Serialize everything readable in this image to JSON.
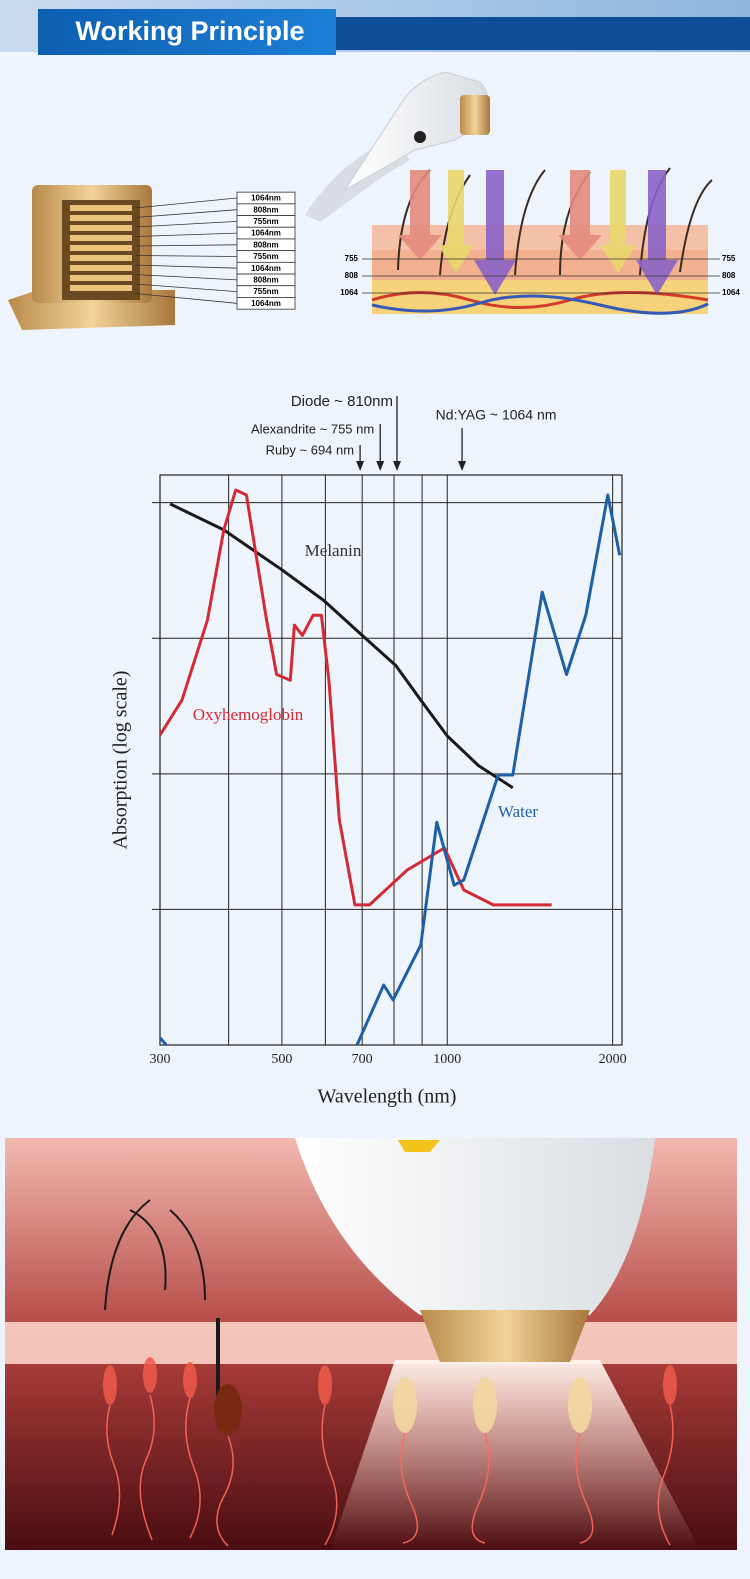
{
  "header": {
    "title": "Working Principle"
  },
  "diode_stack": {
    "labels": [
      "1064nm",
      "808nm",
      "755nm",
      "1064nm",
      "808nm",
      "755nm",
      "1064nm",
      "808nm",
      "755nm",
      "1064nm"
    ]
  },
  "skin_diagram": {
    "labels": [
      "755",
      "808",
      "1064"
    ]
  },
  "chart_data": {
    "type": "line",
    "xlabel": "Wavelength (nm)",
    "ylabel": "Absorption (log scale)",
    "xscale": "log",
    "yscale": "log",
    "xlim": [
      300,
      2080
    ],
    "xticks": [
      300,
      500,
      700,
      1000,
      2000
    ],
    "xgrid_minor": [
      400,
      600,
      800,
      900
    ],
    "ylim": [
      0.01,
      160
    ],
    "ygrid": [
      0.1,
      1,
      10,
      100
    ],
    "grid": true,
    "annotations": [
      {
        "text": "Ruby ~ 694 nm",
        "x": 694
      },
      {
        "text": "Alexandrite ~ 755 nm",
        "x": 755
      },
      {
        "text": "Diode ~ 810nm",
        "x": 810
      },
      {
        "text": "Nd:YAG ~ 1064 nm",
        "x": 1064
      }
    ],
    "series": [
      {
        "name": "Melanin",
        "color": "#1a1a1a",
        "x": [
          313,
          392,
          500,
          596,
          700,
          806,
          895,
          1000,
          1140,
          1316
        ],
        "values": [
          98,
          63,
          32,
          19,
          10.5,
          6.3,
          3.5,
          1.9,
          1.15,
          0.79
        ]
      },
      {
        "name": "Oxyhemoglobin",
        "color": "#d42a36",
        "x": [
          300,
          329,
          366,
          392,
          412,
          431,
          469,
          489,
          518,
          527,
          545,
          570,
          590,
          609,
          636,
          679,
          722,
          845,
          988,
          1072,
          1213,
          1549
        ],
        "values": [
          1.93,
          3.5,
          13.6,
          63,
          124,
          114,
          13.6,
          5.4,
          4.9,
          12.5,
          10.5,
          14.8,
          14.8,
          4.9,
          0.46,
          0.108,
          0.108,
          0.195,
          0.284,
          0.139,
          0.108,
          0.108
        ]
      },
      {
        "name": "Water",
        "color": "#1f5fa6",
        "x": [
          300,
          308,
          null,
          685,
          766,
          797,
          895,
          957,
          1029,
          1072,
          1238,
          1316,
          1489,
          1648,
          1787,
          1960,
          2060
        ],
        "values": [
          0.0113,
          0.01,
          null,
          0.01,
          0.0277,
          0.0215,
          0.0546,
          0.44,
          0.151,
          0.165,
          0.98,
          0.98,
          21.9,
          5.4,
          14.8,
          114,
          41
        ]
      }
    ]
  }
}
